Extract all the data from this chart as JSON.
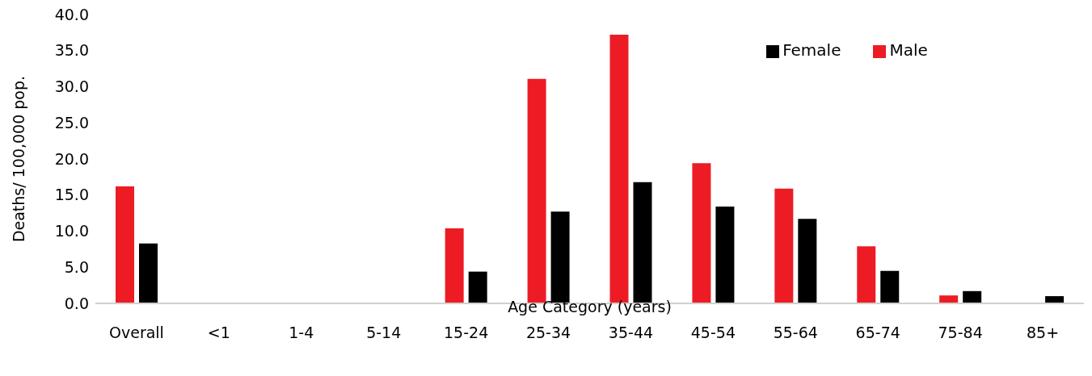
{
  "chart_data": {
    "type": "bar",
    "xlabel": "Age Category (years)",
    "ylabel": "Deaths/ 100,000 pop.",
    "categories": [
      "Overall",
      "<1",
      "1-4",
      "5-14",
      "15-24",
      "25-34",
      "35-44",
      "45-54",
      "55-64",
      "65-74",
      "75-84",
      "85+"
    ],
    "series": [
      {
        "name": "Male",
        "color": "#ed1c24",
        "values": [
          16.2,
          0,
          0,
          0,
          10.4,
          31.1,
          37.2,
          19.4,
          15.9,
          7.9,
          1.1,
          0
        ]
      },
      {
        "name": "Female",
        "color": "#000000",
        "values": [
          8.3,
          0,
          0,
          0,
          4.4,
          12.7,
          16.8,
          13.4,
          11.7,
          4.5,
          1.7,
          1.0
        ]
      }
    ],
    "ylim": [
      0,
      40
    ],
    "yticks": [
      {
        "value": 0,
        "label": "0.0"
      },
      {
        "value": 5,
        "label": "5.0"
      },
      {
        "value": 10,
        "label": "10.0"
      },
      {
        "value": 15,
        "label": "15.0"
      },
      {
        "value": 20,
        "label": "20.0"
      },
      {
        "value": 25,
        "label": "25.0"
      },
      {
        "value": 30,
        "label": "30.0"
      },
      {
        "value": 35,
        "label": "35.0"
      },
      {
        "value": 40,
        "label": "40.0"
      }
    ],
    "grid": false,
    "legend": "top right"
  }
}
